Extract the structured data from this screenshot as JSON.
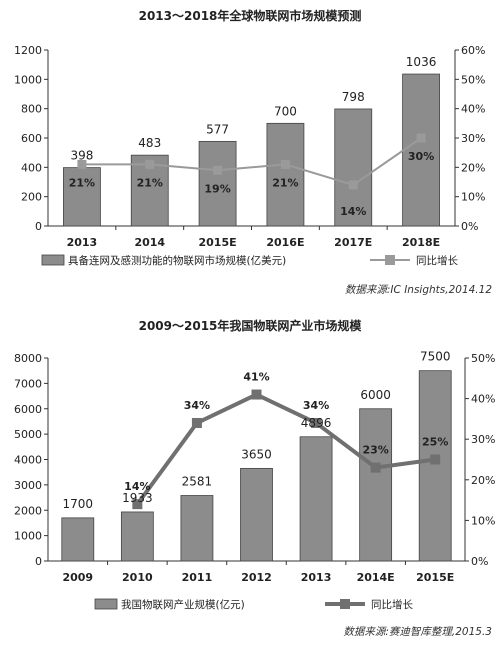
{
  "chart_data": [
    {
      "type": "bar",
      "title": "2013～2018年全球物联网市场规模预测",
      "categories": [
        "2013",
        "2014",
        "2015E",
        "2016E",
        "2017E",
        "2018E"
      ],
      "series": [
        {
          "name": "具备连网及感测功能的物联网市场规模(亿美元)",
          "type": "bar",
          "axis": "left",
          "color": "#8c8c8c",
          "values": [
            398,
            483,
            577,
            700,
            798,
            1036
          ],
          "labels": [
            "398",
            "483",
            "577",
            "700",
            "798",
            "1036"
          ]
        },
        {
          "name": "同比增长",
          "type": "line",
          "axis": "right",
          "color": "#9a9a9a",
          "values": [
            21,
            21,
            19,
            21,
            14,
            30
          ],
          "labels": [
            "21%",
            "21%",
            "19%",
            "21%",
            "14%",
            "30%"
          ]
        }
      ],
      "ylim": [
        0,
        1200
      ],
      "yticks": [
        "0",
        "200",
        "400",
        "600",
        "800",
        "1000",
        "1200"
      ],
      "y2lim": [
        0,
        60
      ],
      "y2ticks": [
        "0%",
        "10%",
        "20%",
        "30%",
        "40%",
        "50%",
        "60%"
      ],
      "grid": false,
      "legend_position": "bottom",
      "source": "数据来源:IC Insights,2014.12"
    },
    {
      "type": "bar",
      "title": "2009～2015年我国物联网产业市场规模",
      "categories": [
        "2009",
        "2010",
        "2011",
        "2012",
        "2013",
        "2014E",
        "2015E"
      ],
      "series": [
        {
          "name": "我国物联网产业规模(亿元)",
          "type": "bar",
          "axis": "left",
          "color": "#8c8c8c",
          "values": [
            1700,
            1933,
            2581,
            3650,
            4896,
            6000,
            7500
          ],
          "labels": [
            "1700",
            "1933",
            "2581",
            "3650",
            "4896",
            "6000",
            "7500"
          ]
        },
        {
          "name": "同比增长",
          "type": "line",
          "axis": "right",
          "color": "#707070",
          "values": [
            null,
            14,
            34,
            41,
            34,
            23,
            25
          ],
          "labels": [
            "",
            "14%",
            "34%",
            "41%",
            "34%",
            "23%",
            "25%"
          ]
        }
      ],
      "ylim": [
        0,
        8000
      ],
      "yticks": [
        "0",
        "1000",
        "2000",
        "3000",
        "4000",
        "5000",
        "6000",
        "7000",
        "8000"
      ],
      "y2lim": [
        0,
        50
      ],
      "y2ticks": [
        "0%",
        "10%",
        "20%",
        "30%",
        "40%",
        "50%"
      ],
      "grid": false,
      "legend_position": "bottom",
      "source": "数据来源:赛迪智库整理,2015.3"
    }
  ]
}
